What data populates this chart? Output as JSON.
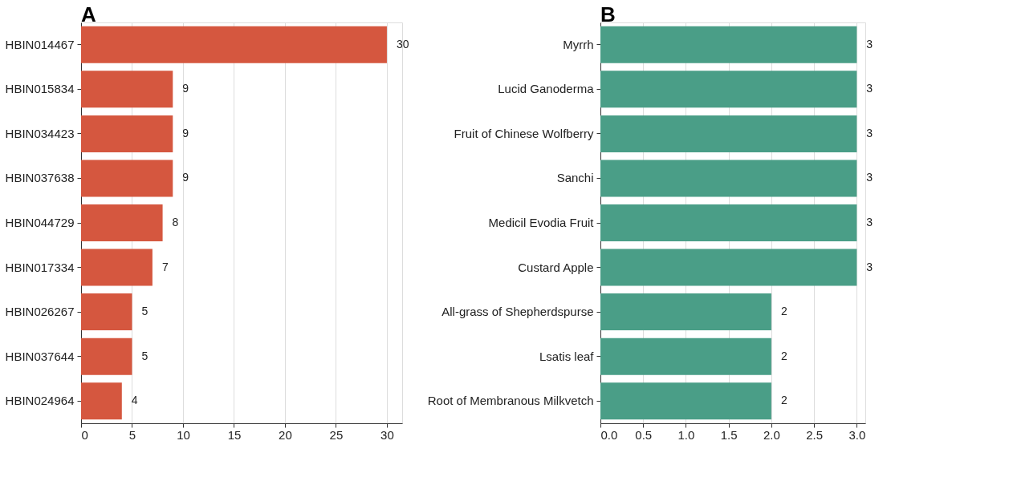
{
  "chart_data": [
    {
      "type": "bar",
      "title": "A",
      "orientation": "horizontal",
      "categories": [
        "HBIN014467",
        "HBIN015834",
        "HBIN034423",
        "HBIN037638",
        "HBIN044729",
        "HBIN017334",
        "HBIN026267",
        "HBIN037644",
        "HBIN024964"
      ],
      "values": [
        30,
        9,
        9,
        9,
        8,
        7,
        5,
        5,
        4
      ],
      "color": "#d5573f",
      "xlim": [
        0,
        31.5
      ],
      "xticks": [
        0,
        5,
        10,
        15,
        20,
        25,
        30
      ],
      "grid": "x",
      "data_labels": true
    },
    {
      "type": "bar",
      "title": "B",
      "orientation": "horizontal",
      "categories": [
        "Myrrh",
        "Lucid Ganoderma",
        "Fruit of Chinese Wolfberry",
        "Sanchi",
        "Medicil Evodia Fruit",
        "Custard Apple",
        "All-grass of Shepherdspurse",
        "Lsatis leaf",
        "Root of Membranous Milkvetch"
      ],
      "values": [
        3,
        3,
        3,
        3,
        3,
        3,
        2,
        2,
        2
      ],
      "color": "#4a9e87",
      "xlim": [
        0,
        3.1
      ],
      "xticks": [
        {
          "value": 0,
          "label": "0.0"
        },
        {
          "value": 0.5,
          "label": "0.5"
        },
        {
          "value": 1,
          "label": "1.0"
        },
        {
          "value": 1.5,
          "label": "1.5"
        },
        {
          "value": 2,
          "label": "2.0"
        },
        {
          "value": 2.5,
          "label": "2.5"
        },
        {
          "value": 3,
          "label": "3.0"
        }
      ],
      "grid": "x",
      "data_labels": true
    }
  ]
}
